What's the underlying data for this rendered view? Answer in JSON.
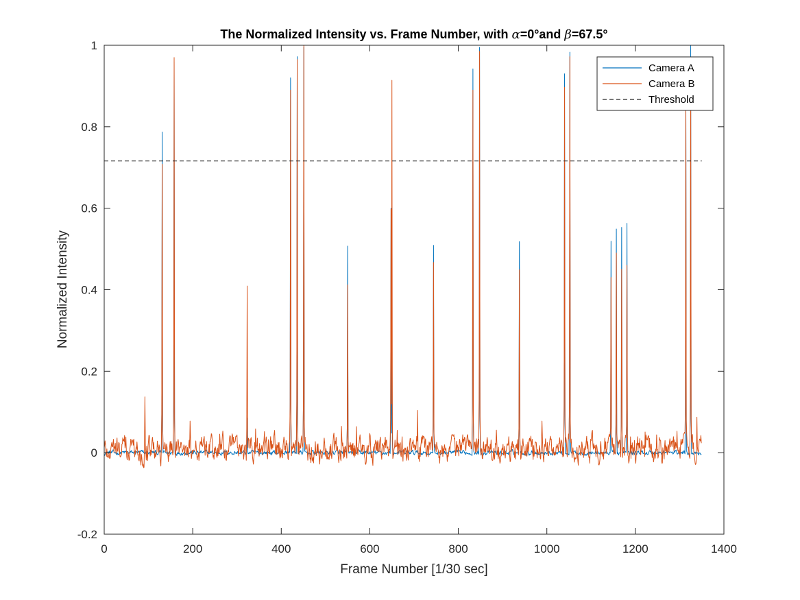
{
  "chart_data": {
    "type": "line",
    "title_parts": [
      "The Normalized Intensity vs. Frame Number, with ",
      "α",
      "=0°and ",
      "β",
      "=67.5°"
    ],
    "xlabel": "Frame Number [1/30 sec]",
    "ylabel": "Normalized Intensity",
    "xlim": [
      0,
      1400
    ],
    "ylim": [
      -0.2,
      1
    ],
    "xticks": [
      0,
      200,
      400,
      600,
      800,
      1000,
      1200,
      1400
    ],
    "yticks": [
      -0.2,
      0,
      0.2,
      0.4,
      0.6,
      0.8,
      1
    ],
    "ytick_labels": [
      "-0.2",
      "0",
      "0.2",
      "0.4",
      "0.6",
      "0.8",
      "1"
    ],
    "grid": false,
    "legend_position": "top-right",
    "n_frames": 1350,
    "series": [
      {
        "name": "Camera A",
        "color": "#0072BD",
        "style": "solid",
        "baseline": 0.0,
        "noise": 0.004,
        "peaks": [
          [
            131,
            0.787
          ],
          [
            158,
            0.96
          ],
          [
            323,
            0.085
          ],
          [
            421,
            0.92
          ],
          [
            436,
            0.972
          ],
          [
            451,
            0.996
          ],
          [
            550,
            0.507
          ],
          [
            648,
            0.6
          ],
          [
            650,
            0.335
          ],
          [
            744,
            0.509
          ],
          [
            833,
            0.942
          ],
          [
            848,
            0.995
          ],
          [
            938,
            0.518
          ],
          [
            1040,
            0.93
          ],
          [
            1052,
            0.983
          ],
          [
            1145,
            0.519
          ],
          [
            1157,
            0.549
          ],
          [
            1169,
            0.553
          ],
          [
            1181,
            0.563
          ],
          [
            1314,
            0.91
          ],
          [
            1325,
            1.0
          ]
        ]
      },
      {
        "name": "Camera B",
        "color": "#D95319",
        "style": "solid",
        "baseline": 0.01,
        "noise": 0.022,
        "peaks": [
          [
            92,
            0.137
          ],
          [
            131,
            0.708
          ],
          [
            158,
            0.97
          ],
          [
            323,
            0.409
          ],
          [
            421,
            0.89
          ],
          [
            436,
            0.965
          ],
          [
            451,
            1.0
          ],
          [
            550,
            0.412
          ],
          [
            648,
            0.598
          ],
          [
            650,
            0.914
          ],
          [
            744,
            0.467
          ],
          [
            833,
            0.89
          ],
          [
            848,
            0.985
          ],
          [
            938,
            0.449
          ],
          [
            1040,
            0.897
          ],
          [
            1052,
            0.972
          ],
          [
            1145,
            0.43
          ],
          [
            1157,
            0.49
          ],
          [
            1169,
            0.45
          ],
          [
            1181,
            0.46
          ],
          [
            1314,
            0.87
          ],
          [
            1325,
            0.95
          ]
        ]
      },
      {
        "name": "Threshold",
        "color": "#262626",
        "style": "dashed",
        "values": [
          [
            0,
            0.716
          ],
          [
            1350,
            0.716
          ]
        ]
      }
    ]
  }
}
